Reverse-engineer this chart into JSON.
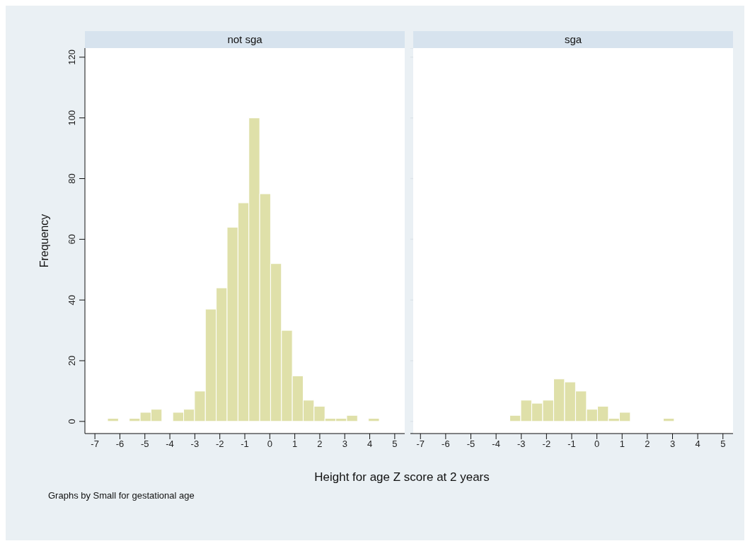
{
  "chart_data": [
    {
      "type": "histogram",
      "title": "not sga",
      "xlabel": "Height for age Z score at 2 years",
      "ylabel": "Frequency",
      "annotations": [
        "Graphs by Small for gestational age"
      ],
      "bins": [
        -6.5,
        -6.065,
        -5.63,
        -5.195,
        -4.76,
        -4.325,
        -3.89,
        -3.455,
        -3.02,
        -2.585,
        -2.15,
        -1.715,
        -1.28,
        -0.845,
        -0.41,
        0.025,
        0.46,
        0.895,
        1.33,
        1.765,
        2.2,
        2.635,
        3.07,
        3.505,
        3.94,
        4.375
      ],
      "values": [
        1,
        0,
        1,
        3,
        4,
        0,
        3,
        4,
        10,
        37,
        44,
        64,
        72,
        100,
        75,
        52,
        30,
        15,
        7,
        5,
        1,
        1,
        2,
        0,
        1
      ],
      "color": "#dfe0a9",
      "xlim": [
        -7.4,
        5.4
      ],
      "xticks": [
        -7,
        -6,
        -5,
        -4,
        -3,
        -2,
        -1,
        0,
        1,
        2,
        3,
        4,
        5
      ],
      "ylim": [
        -4,
        123
      ],
      "yticks": [
        0,
        20,
        40,
        60,
        80,
        100,
        120
      ],
      "grid": "y"
    },
    {
      "type": "histogram",
      "title": "sga",
      "bins": [
        -6.5,
        -6.065,
        -5.63,
        -5.195,
        -4.76,
        -4.325,
        -3.89,
        -3.455,
        -3.02,
        -2.585,
        -2.15,
        -1.715,
        -1.28,
        -0.845,
        -0.41,
        0.025,
        0.46,
        0.895,
        1.33,
        1.765,
        2.2,
        2.635,
        3.07,
        3.505,
        3.94,
        4.375
      ],
      "values": [
        0,
        0,
        0,
        0,
        0,
        0,
        0,
        2,
        7,
        6,
        7,
        14,
        13,
        10,
        4,
        5,
        1,
        3,
        0,
        0,
        0,
        1,
        0,
        0,
        0
      ],
      "color": "#dfe0a9",
      "xlim": [
        -7.4,
        5.4
      ],
      "xticks": [
        -7,
        -6,
        -5,
        -4,
        -3,
        -2,
        -1,
        0,
        1,
        2,
        3,
        4,
        5
      ],
      "ylim": [
        -4,
        123
      ],
      "yticks": [
        0,
        20,
        40,
        60,
        80,
        100,
        120
      ],
      "grid": "y",
      "tick_labels": "x"
    }
  ]
}
